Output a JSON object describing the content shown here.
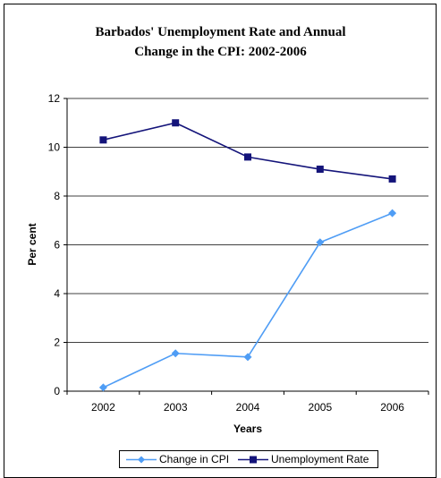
{
  "chart_data": {
    "type": "line",
    "title_line1": "Barbados' Unemployment Rate and Annual",
    "title_line2": "Change in the CPI: 2002-2006",
    "xlabel": "Years",
    "ylabel": "Per cent",
    "categories": [
      "2002",
      "2003",
      "2004",
      "2005",
      "2006"
    ],
    "ylim": [
      0,
      12
    ],
    "yticks": [
      "0",
      "2",
      "4",
      "6",
      "8",
      "10",
      "12"
    ],
    "grid": true,
    "legend_position": "bottom",
    "series": [
      {
        "name": "Change in CPI",
        "values": [
          0.15,
          1.55,
          1.4,
          6.1,
          7.3
        ],
        "color": "#4f9df5",
        "marker": "diamond"
      },
      {
        "name": "Unemployment Rate",
        "values": [
          10.3,
          11.0,
          9.6,
          9.1,
          8.7
        ],
        "color": "#14147a",
        "marker": "square"
      }
    ]
  }
}
